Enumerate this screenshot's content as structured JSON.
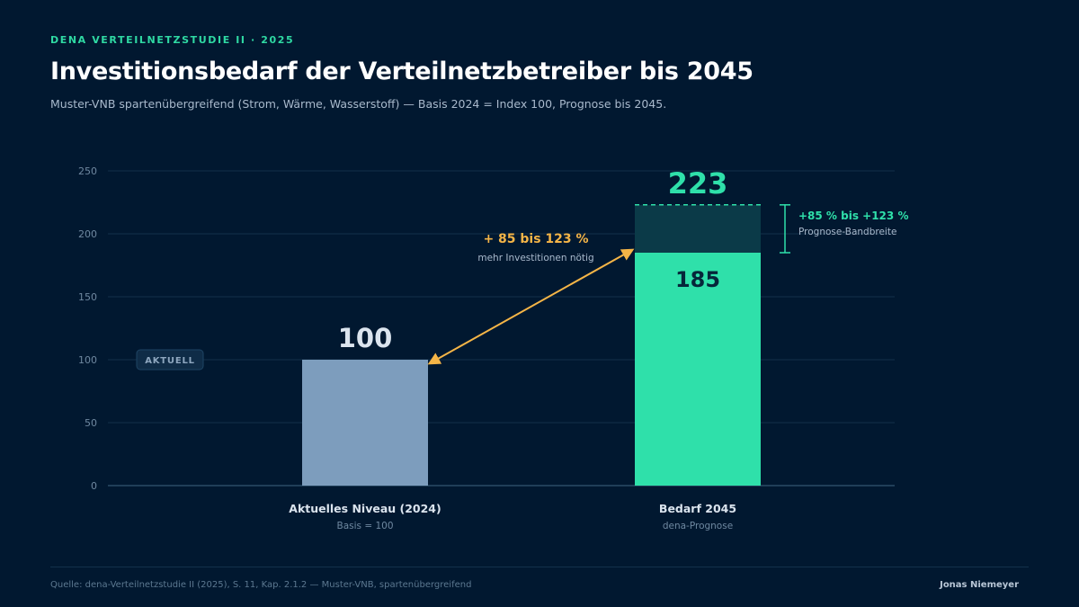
{
  "header": {
    "eyebrow": "DENA VERTEILNETZSTUDIE II · 2025",
    "title": "Investitionsbedarf der Verteilnetzbetreiber bis 2045",
    "subtitle": "Muster-VNB spartenübergreifend (Strom, Wärme, Wasserstoff) — Basis 2024 = Index 100, Prognose bis 2045."
  },
  "chart_data": {
    "type": "bar",
    "yticks": [
      0,
      50,
      100,
      150,
      200,
      250
    ],
    "ylim": [
      0,
      250
    ],
    "grid": true,
    "categories": [
      {
        "label": "Aktuelles Niveau (2024)",
        "sublabel": "Basis = 100"
      },
      {
        "label": "Bedarf 2045",
        "sublabel": "dena-Prognose"
      }
    ],
    "bars": [
      {
        "value": 100,
        "value_label": "100",
        "color": "#7d9dbd"
      },
      {
        "low": 185,
        "high": 223,
        "low_label": "185",
        "high_label": "223",
        "color": "#2fe0aa",
        "band_color": "#0b3a48"
      }
    ],
    "annotations": {
      "current_badge": "AKTUELL",
      "current_badge_at": 100,
      "arrow_title": "+ 85 bis 123 %",
      "arrow_subtitle": "mehr Investitionen nötig",
      "band_title": "+85 % bis +123 %",
      "band_subtitle": "Prognose-Bandbreite"
    },
    "colors": {
      "accent": "#2fe0aa",
      "arrow": "#f5b547",
      "base_bar": "#7d9dbd",
      "band": "#0b3a48",
      "grid": "#13304a"
    }
  },
  "footer": {
    "source": "Quelle: dena-Verteilnetzstudie II (2025), S. 11, Kap. 2.1.2 — Muster-VNB, spartenübergreifend",
    "author": "Jonas Niemeyer"
  }
}
